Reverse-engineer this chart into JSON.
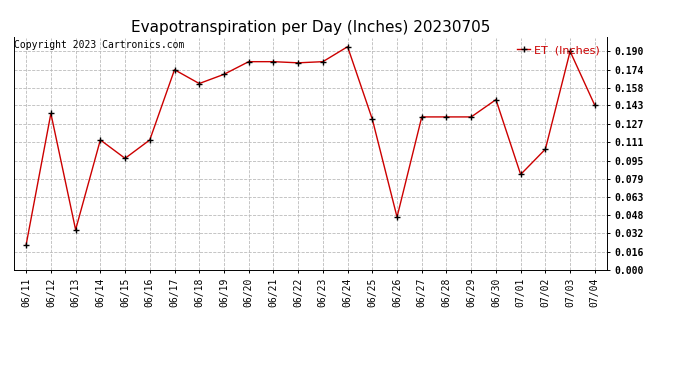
{
  "title": "Evapotranspiration per Day (Inches) 20230705",
  "copyright_text": "Copyright 2023 Cartronics.com",
  "legend_label": "ET  (Inches)",
  "dates": [
    "06/11",
    "06/12",
    "06/13",
    "06/14",
    "06/15",
    "06/16",
    "06/17",
    "06/18",
    "06/19",
    "06/20",
    "06/21",
    "06/22",
    "06/23",
    "06/24",
    "06/25",
    "06/26",
    "06/27",
    "06/28",
    "06/29",
    "06/30",
    "07/01",
    "07/02",
    "07/03",
    "07/04"
  ],
  "values": [
    0.022,
    0.136,
    0.035,
    0.113,
    0.097,
    0.113,
    0.174,
    0.162,
    0.17,
    0.181,
    0.181,
    0.18,
    0.181,
    0.194,
    0.131,
    0.046,
    0.133,
    0.133,
    0.133,
    0.148,
    0.083,
    0.105,
    0.19,
    0.143
  ],
  "ylim": [
    0.0,
    0.202
  ],
  "yticks": [
    0.0,
    0.016,
    0.032,
    0.048,
    0.063,
    0.079,
    0.095,
    0.111,
    0.127,
    0.143,
    0.158,
    0.174,
    0.19
  ],
  "line_color": "#cc0000",
  "marker_color": "black",
  "bg_color": "#ffffff",
  "grid_color": "#bbbbbb",
  "title_fontsize": 11,
  "copyright_fontsize": 7,
  "legend_fontsize": 8,
  "tick_fontsize": 7,
  "ytick_fontsize": 7
}
